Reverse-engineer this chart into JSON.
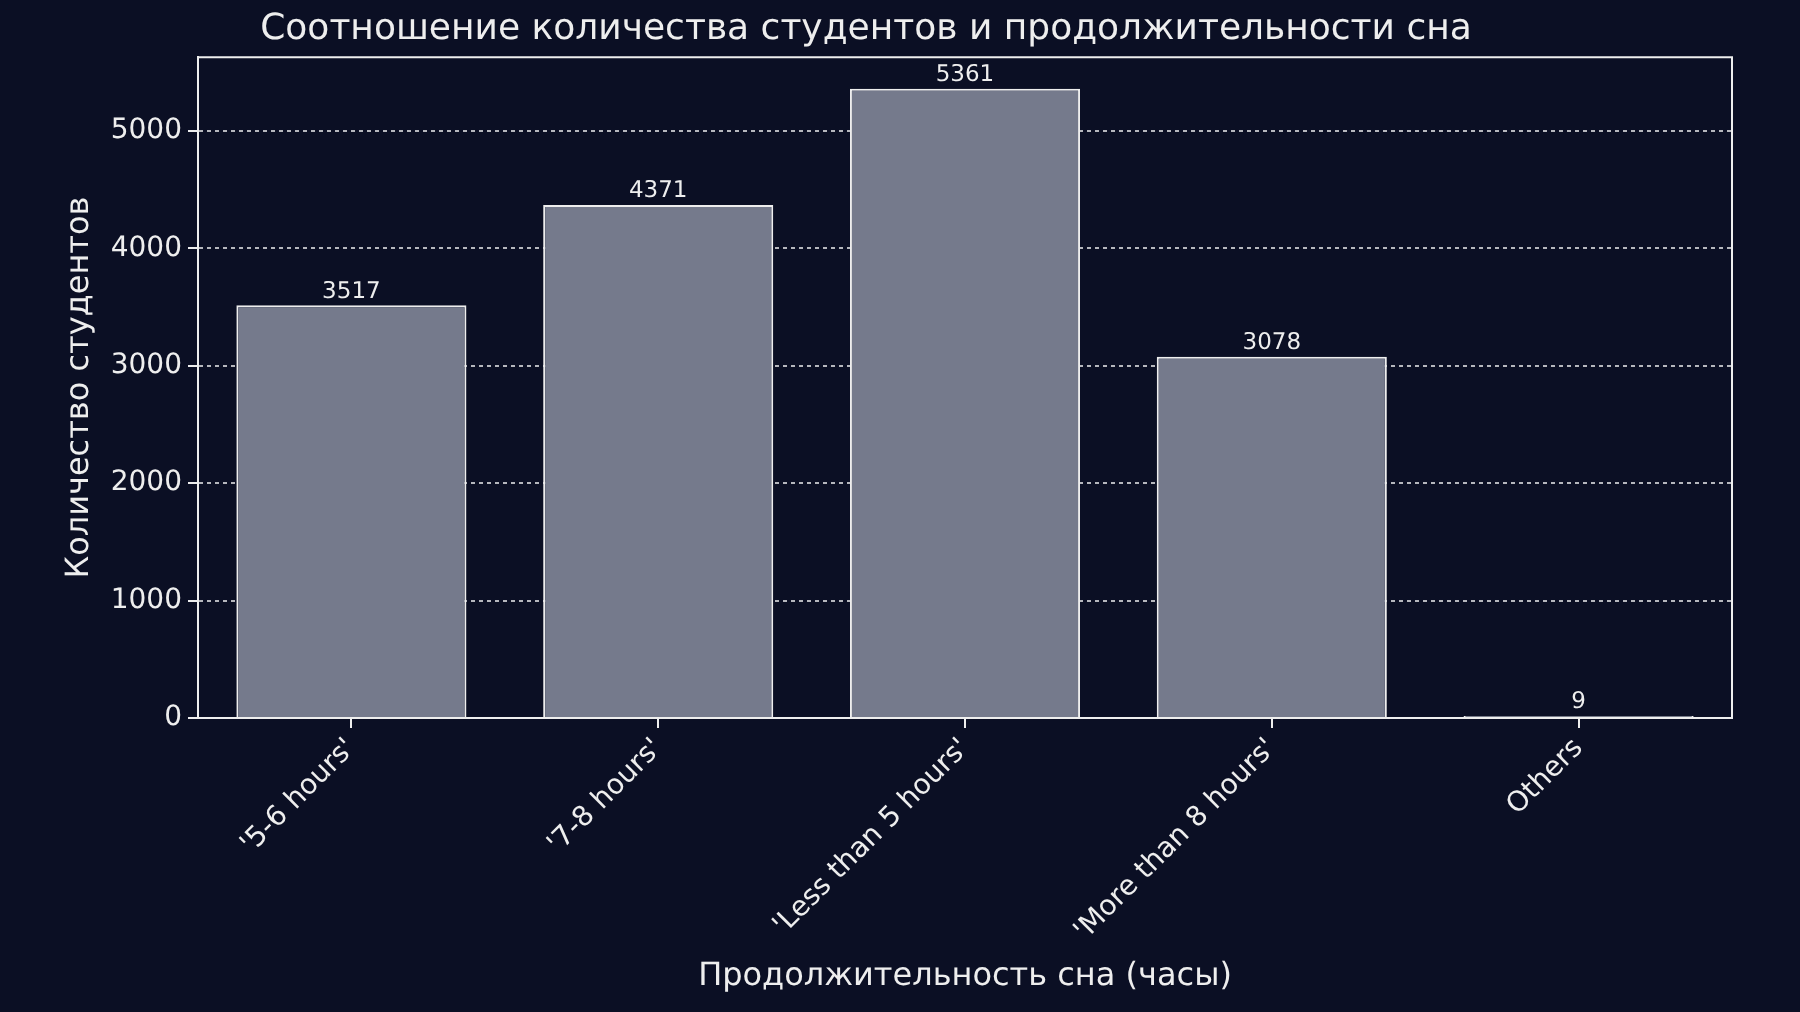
{
  "chart_data": {
    "type": "bar",
    "title": "Соотношение количества студентов и продолжительности сна",
    "xlabel": "Продолжительность сна (часы)",
    "ylabel": "Количество студентов",
    "categories": [
      "'5-6 hours'",
      "'7-8 hours'",
      "'Less than 5 hours'",
      "'More than 8 hours'",
      "Others"
    ],
    "values": [
      3517,
      4371,
      5361,
      3078,
      9
    ],
    "color": "#757a8c",
    "ylim": [
      0,
      5629
    ],
    "yticks": [
      0,
      1000,
      2000,
      3000,
      4000,
      5000
    ],
    "grid": "y",
    "data_labels": true
  }
}
